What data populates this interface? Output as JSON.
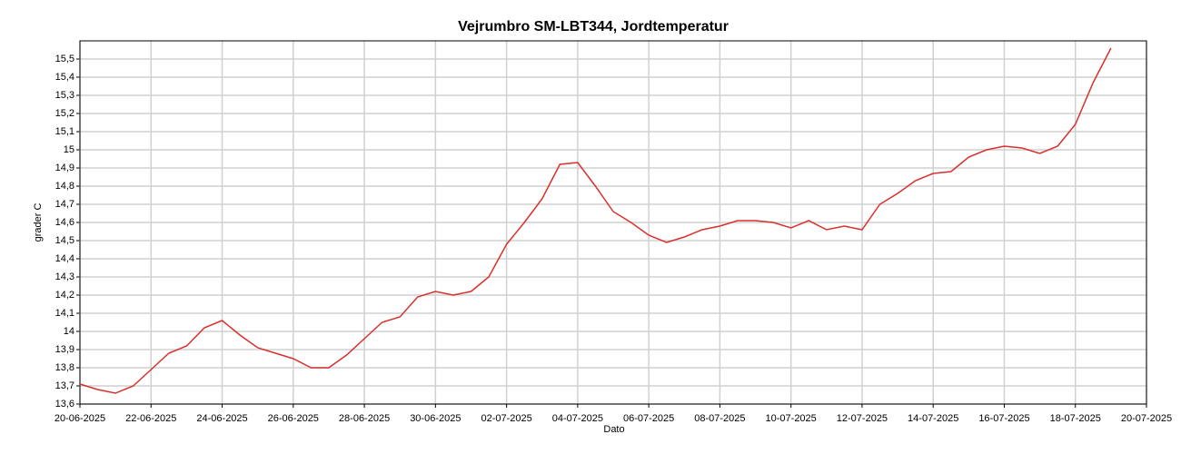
{
  "chart_data": {
    "type": "line",
    "title": "Vejrumbro SM-LBT344, Jordtemperatur",
    "x_label": "Dato",
    "y_label": "grader C",
    "x": [
      "20-06-2025 00:00",
      "20-06-2025 12:00",
      "21-06-2025 00:00",
      "21-06-2025 12:00",
      "22-06-2025 00:00",
      "22-06-2025 12:00",
      "23-06-2025 00:00",
      "23-06-2025 12:00",
      "24-06-2025 00:00",
      "24-06-2025 12:00",
      "25-06-2025 00:00",
      "25-06-2025 12:00",
      "26-06-2025 00:00",
      "26-06-2025 12:00",
      "27-06-2025 00:00",
      "27-06-2025 12:00",
      "28-06-2025 00:00",
      "28-06-2025 12:00",
      "29-06-2025 00:00",
      "29-06-2025 12:00",
      "30-06-2025 00:00",
      "30-06-2025 12:00",
      "01-07-2025 00:00",
      "01-07-2025 12:00",
      "02-07-2025 00:00",
      "02-07-2025 12:00",
      "03-07-2025 00:00",
      "03-07-2025 12:00",
      "04-07-2025 00:00",
      "04-07-2025 12:00",
      "05-07-2025 00:00",
      "05-07-2025 12:00",
      "06-07-2025 00:00",
      "06-07-2025 12:00",
      "07-07-2025 00:00",
      "07-07-2025 12:00",
      "08-07-2025 00:00",
      "08-07-2025 12:00",
      "09-07-2025 00:00",
      "09-07-2025 12:00",
      "10-07-2025 00:00",
      "10-07-2025 12:00",
      "11-07-2025 00:00",
      "11-07-2025 12:00",
      "12-07-2025 00:00",
      "12-07-2025 12:00",
      "13-07-2025 00:00",
      "13-07-2025 12:00",
      "14-07-2025 00:00",
      "14-07-2025 12:00",
      "15-07-2025 00:00",
      "15-07-2025 12:00",
      "16-07-2025 00:00",
      "16-07-2025 12:00",
      "17-07-2025 00:00",
      "17-07-2025 12:00",
      "18-07-2025 00:00",
      "18-07-2025 12:00",
      "19-07-2025 00:00"
    ],
    "series": [
      {
        "name": "Jordtemperatur",
        "color": "#d9302c",
        "values": [
          13.71,
          13.68,
          13.66,
          13.7,
          13.79,
          13.88,
          13.92,
          14.02,
          14.06,
          13.98,
          13.91,
          13.88,
          13.85,
          13.8,
          13.8,
          13.87,
          13.96,
          14.05,
          14.08,
          14.19,
          14.22,
          14.2,
          14.22,
          14.3,
          14.48,
          14.6,
          14.73,
          14.92,
          14.93,
          14.8,
          14.66,
          14.6,
          14.53,
          14.49,
          14.52,
          14.56,
          14.58,
          14.61,
          14.61,
          14.6,
          14.57,
          14.61,
          14.56,
          14.58,
          14.56,
          14.7,
          14.76,
          14.83,
          14.87,
          14.88,
          14.96,
          15.0,
          15.02,
          15.01,
          14.98,
          15.02,
          15.14,
          15.37,
          15.56
        ]
      }
    ],
    "xlim": [
      "20-06-2025",
      "20-07-2025"
    ],
    "xticks": [
      "20-06-2025",
      "22-06-2025",
      "24-06-2025",
      "26-06-2025",
      "28-06-2025",
      "30-06-2025",
      "02-07-2025",
      "04-07-2025",
      "06-07-2025",
      "08-07-2025",
      "10-07-2025",
      "12-07-2025",
      "14-07-2025",
      "16-07-2025",
      "18-07-2025",
      "20-07-2025"
    ],
    "ylim": [
      13.6,
      15.6
    ],
    "yticks": [
      {
        "value": 13.6,
        "label": "13,6"
      },
      {
        "value": 13.7,
        "label": "13,7"
      },
      {
        "value": 13.8,
        "label": "13,8"
      },
      {
        "value": 13.9,
        "label": "13,9"
      },
      14,
      {
        "value": 14.1,
        "label": "14,1"
      },
      {
        "value": 14.2,
        "label": "14,2"
      },
      {
        "value": 14.3,
        "label": "14,3"
      },
      {
        "value": 14.4,
        "label": "14,4"
      },
      {
        "value": 14.5,
        "label": "14,5"
      },
      {
        "value": 14.6,
        "label": "14,6"
      },
      {
        "value": 14.7,
        "label": "14,7"
      },
      {
        "value": 14.8,
        "label": "14,8"
      },
      {
        "value": 14.9,
        "label": "14,9"
      },
      15,
      {
        "value": 15.1,
        "label": "15,1"
      },
      {
        "value": 15.2,
        "label": "15,2"
      },
      {
        "value": 15.3,
        "label": "15,3"
      },
      {
        "value": 15.4,
        "label": "15,4"
      },
      {
        "value": 15.5,
        "label": "15,5"
      }
    ],
    "grid": true
  }
}
